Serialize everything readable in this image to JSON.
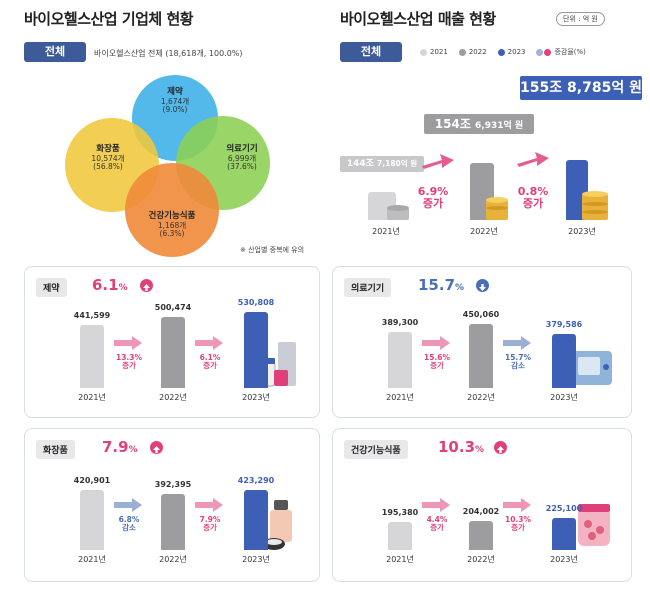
{
  "left_header": {
    "title": "바이오헬스산업 기업체 현황",
    "chip": "전체",
    "total_text": "바이오헬스산업 전체 (18,618개, 100.0%)",
    "note": "※ 산업별 중복에 유의"
  },
  "venn": [
    {
      "name": "제약",
      "count": "1,674개",
      "pct": "(9.0%)"
    },
    {
      "name": "의료기기",
      "count": "6,999개",
      "pct": "(37.6%)"
    },
    {
      "name": "화장품",
      "count": "10,574개",
      "pct": "(56.8%)"
    },
    {
      "name": "건강기능식품",
      "count": "1,168개",
      "pct": "(6.3%)"
    }
  ],
  "right_header": {
    "title": "바이오헬스산업 매출 현황",
    "unit": "단위 : 억 원",
    "chip": "전체",
    "legend": [
      "2021",
      "2022",
      "2023",
      "증감율(%)"
    ]
  },
  "total_sales": {
    "callouts": [
      {
        "big": "144조",
        "rest": "7,180억 원"
      },
      {
        "big": "154조",
        "rest": "6,931억 원"
      },
      {
        "big": "155조",
        "rest": "8,785억 원"
      }
    ],
    "changes": [
      {
        "pct": "6.9%",
        "word": "증가"
      },
      {
        "pct": "0.8%",
        "word": "증가"
      }
    ],
    "years": [
      "2021년",
      "2022년",
      "2023년"
    ]
  },
  "colors": {
    "navy": "#3d5a99",
    "bar2021": "#d6d6d8",
    "bar2022": "#9d9da0",
    "bar2023": "#3d5fb5",
    "increase": "#e0407a",
    "decrease": "#4a6fb5",
    "venn_pharma": "#3fb1e8",
    "venn_device": "#8ccf52",
    "venn_cosmetic": "#f0c83a",
    "venn_health": "#f08a3a"
  },
  "chart_data": [
    {
      "type": "bar",
      "title": "제약",
      "growth": "6.1",
      "growth_direction": "up",
      "categories": [
        "2021년",
        "2022년",
        "2023년"
      ],
      "values": [
        441599,
        500474,
        530808
      ],
      "value_labels": [
        "441,599",
        "500,474",
        "530,808"
      ],
      "changes": [
        {
          "pct": "13.3%",
          "word": "증가"
        },
        {
          "pct": "6.1%",
          "word": "증가"
        }
      ]
    },
    {
      "type": "bar",
      "title": "의료기기",
      "growth": "15.7",
      "growth_direction": "down",
      "categories": [
        "2021년",
        "2022년",
        "2023년"
      ],
      "values": [
        389300,
        450060,
        379586
      ],
      "value_labels": [
        "389,300",
        "450,060",
        "379,586"
      ],
      "changes": [
        {
          "pct": "15.6%",
          "word": "증가"
        },
        {
          "pct": "15.7%",
          "word": "감소"
        }
      ]
    },
    {
      "type": "bar",
      "title": "화장품",
      "growth": "7.9",
      "growth_direction": "up",
      "categories": [
        "2021년",
        "2022년",
        "2023년"
      ],
      "values": [
        420901,
        392395,
        423290
      ],
      "value_labels": [
        "420,901",
        "392,395",
        "423,290"
      ],
      "changes": [
        {
          "pct": "6.8%",
          "word": "감소"
        },
        {
          "pct": "7.9%",
          "word": "증가"
        }
      ]
    },
    {
      "type": "bar",
      "title": "건강기능식품",
      "growth": "10.3",
      "growth_direction": "up",
      "categories": [
        "2021년",
        "2022년",
        "2023년"
      ],
      "values": [
        195380,
        204002,
        225100
      ],
      "value_labels": [
        "195,380",
        "204,002",
        "225,100"
      ],
      "changes": [
        {
          "pct": "4.4%",
          "word": "증가"
        },
        {
          "pct": "10.3%",
          "word": "증가"
        }
      ]
    }
  ]
}
